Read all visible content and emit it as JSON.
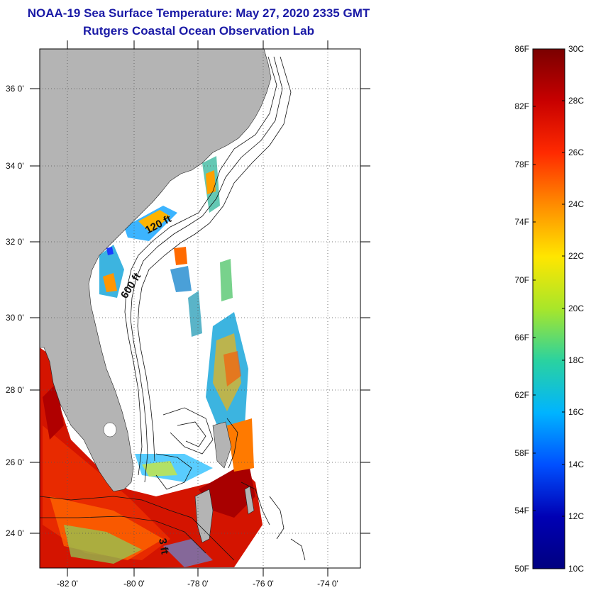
{
  "title": {
    "line1": "NOAA-19 Sea Surface Temperature:  May 27, 2020 2335 GMT",
    "line2": "Rutgers Coastal Ocean Observation Lab"
  },
  "map": {
    "lat_labels": [
      "36 0'",
      "34 0'",
      "32 0'",
      "30 0'",
      "28 0'",
      "26 0'",
      "24 0'"
    ],
    "lon_labels": [
      "-82 0'",
      "-80 0'",
      "-78 0'",
      "-76 0'",
      "-74 0'"
    ],
    "contour_labels": [
      "120 ft",
      "600 ft",
      "3 ft"
    ],
    "colors": {
      "land": "#b4b4b4",
      "nodata": "#ffffff"
    }
  },
  "colorbar": {
    "left_labels": [
      "86F",
      "82F",
      "78F",
      "74F",
      "70F",
      "66F",
      "62F",
      "58F",
      "54F",
      "50F"
    ],
    "right_labels": [
      "30C",
      "28C",
      "26C",
      "24C",
      "22C",
      "20C",
      "18C",
      "16C",
      "14C",
      "12C",
      "10C"
    ],
    "stops": [
      "#7a0000",
      "#c80000",
      "#ff2a00",
      "#ff8c00",
      "#ffe600",
      "#a8e62a",
      "#2ad2a0",
      "#00b4ff",
      "#0050ff",
      "#0000b4",
      "#000080"
    ]
  }
}
